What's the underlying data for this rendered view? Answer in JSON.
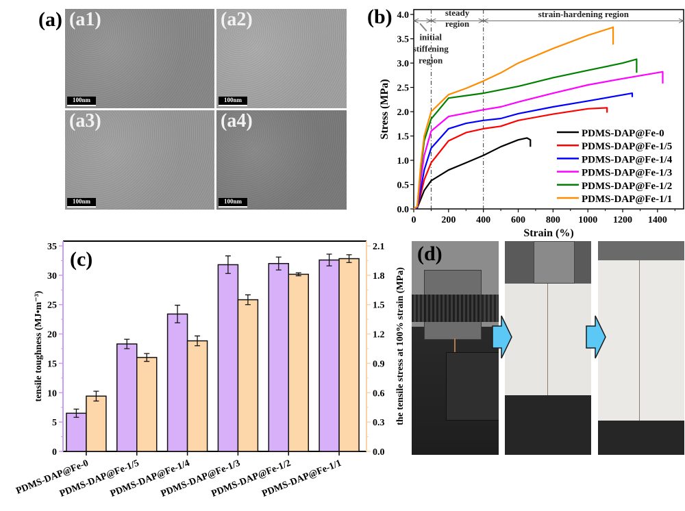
{
  "figure": {
    "panel_labels": {
      "a": "(a)",
      "b": "(b)",
      "c": "(c)",
      "d": "(d)"
    },
    "tem_images": [
      {
        "label": "(a1)",
        "scale_bar": "100nm",
        "tone": "#8a8a8a"
      },
      {
        "label": "(a2)",
        "scale_bar": "100nm",
        "tone": "#a2a2a2"
      },
      {
        "label": "(a3)",
        "scale_bar": "100nm",
        "tone": "#989898"
      },
      {
        "label": "(a4)",
        "scale_bar": "100nm",
        "tone": "#7c7c7c"
      }
    ],
    "photos": {
      "description": [
        "clamped sample before stretching",
        "sample stretched",
        "sample further stretched"
      ],
      "arrow_color": "#5bc8f5"
    }
  },
  "chart_data": [
    {
      "type": "line",
      "panel": "(b)",
      "xlabel": "Strain (%)",
      "ylabel": "Stress (MPa)",
      "xlim": [
        0,
        1550
      ],
      "ylim": [
        0,
        4.1
      ],
      "xticks": [
        0,
        200,
        400,
        600,
        800,
        1000,
        1200,
        1400
      ],
      "yticks": [
        0.0,
        0.5,
        1.0,
        1.5,
        2.0,
        2.5,
        3.0,
        3.5,
        4.0
      ],
      "ytick_labels": [
        "0.0",
        "0.5",
        "1.0",
        "1.5",
        "2.0",
        "2.5",
        "3.0",
        "3.5",
        "4.0"
      ],
      "legend_position": "bottom-right",
      "annotations": {
        "vlines": [
          100,
          400
        ],
        "regions": [
          {
            "text": [
              "initial",
              "stiffening",
              "region"
            ]
          },
          {
            "text": [
              "steady",
              "region"
            ]
          },
          {
            "text": [
              "strain-hardening region"
            ]
          }
        ]
      },
      "series": [
        {
          "name": "PDMS-DAP@Fe-0",
          "color": "#000000",
          "x": [
            0,
            20,
            40,
            60,
            100,
            200,
            300,
            400,
            500,
            600,
            650,
            670,
            670
          ],
          "y": [
            0,
            0.02,
            0.2,
            0.38,
            0.58,
            0.8,
            0.95,
            1.1,
            1.28,
            1.42,
            1.46,
            1.42,
            1.28
          ]
        },
        {
          "name": "PDMS-DAP@Fe-1/5",
          "color": "#ff0000",
          "x": [
            0,
            20,
            40,
            60,
            100,
            200,
            300,
            400,
            500,
            600,
            800,
            1000,
            1110,
            1110
          ],
          "y": [
            0,
            0.02,
            0.3,
            0.6,
            0.95,
            1.4,
            1.57,
            1.65,
            1.7,
            1.82,
            1.95,
            2.06,
            2.08,
            1.98
          ]
        },
        {
          "name": "PDMS-DAP@Fe-1/4",
          "color": "#0000ff",
          "x": [
            0,
            20,
            40,
            60,
            100,
            200,
            300,
            400,
            500,
            600,
            800,
            1000,
            1255,
            1255
          ],
          "y": [
            0,
            0.02,
            0.4,
            0.8,
            1.25,
            1.65,
            1.76,
            1.82,
            1.86,
            1.96,
            2.1,
            2.22,
            2.38,
            2.3
          ]
        },
        {
          "name": "PDMS-DAP@Fe-1/3",
          "color": "#ff00ff",
          "x": [
            0,
            20,
            40,
            60,
            100,
            200,
            300,
            400,
            500,
            600,
            800,
            1000,
            1200,
            1430,
            1430
          ],
          "y": [
            0,
            0.05,
            0.6,
            1.1,
            1.6,
            1.9,
            1.97,
            2.04,
            2.1,
            2.2,
            2.38,
            2.55,
            2.68,
            2.82,
            2.58
          ]
        },
        {
          "name": "PDMS-DAP@Fe-1/2",
          "color": "#008000",
          "x": [
            0,
            20,
            40,
            60,
            100,
            200,
            300,
            400,
            500,
            600,
            800,
            1000,
            1200,
            1280,
            1280
          ],
          "y": [
            0,
            0.05,
            0.8,
            1.4,
            1.85,
            2.28,
            2.33,
            2.38,
            2.45,
            2.52,
            2.7,
            2.85,
            3.0,
            3.08,
            2.8
          ]
        },
        {
          "name": "PDMS-DAP@Fe-1/1",
          "color": "#ff8c00",
          "x": [
            0,
            20,
            40,
            60,
            100,
            200,
            300,
            400,
            500,
            600,
            800,
            1000,
            1140,
            1145,
            1145
          ],
          "y": [
            0,
            0.05,
            0.9,
            1.5,
            2.0,
            2.35,
            2.48,
            2.63,
            2.8,
            3.0,
            3.3,
            3.57,
            3.73,
            3.74,
            3.38
          ]
        }
      ]
    },
    {
      "type": "bar",
      "panel": "(c)",
      "categories": [
        "PDMS-DAP@Fe-0",
        "PDMS-DAP@Fe-1/5",
        "PDMS-DAP@Fe-1/4",
        "PDMS-DAP@Fe-1/3",
        "PDMS-DAP@Fe-1/2",
        "PDMS-DAP@Fe-1/1"
      ],
      "ylabel_left": "tensile toughness (MJ•m⁻³)",
      "ylabel_right": "the tensile stress at 100% strain (MPa)",
      "ylim_left": [
        0,
        35
      ],
      "ylim_right": [
        0,
        2.1
      ],
      "yticks_left": [
        "0",
        "5",
        "10",
        "15",
        "20",
        "25",
        "30",
        "35"
      ],
      "yticks_right": [
        "0.0",
        "0.3",
        "0.6",
        "0.9",
        "1.2",
        "1.5",
        "1.8",
        "2.1"
      ],
      "series": [
        {
          "name": "tensile toughness",
          "axis": "left",
          "color": "#d8b0fa",
          "values": [
            6.5,
            18.3,
            23.4,
            31.8,
            32.0,
            32.6
          ],
          "errors": [
            0.7,
            0.8,
            1.5,
            1.5,
            1.1,
            1.0
          ]
        },
        {
          "name": "tensile stress at 100% strain",
          "axis": "right",
          "color": "#fdd7aa",
          "values": [
            0.565,
            0.96,
            1.13,
            1.55,
            1.81,
            1.97
          ],
          "errors": [
            0.05,
            0.04,
            0.05,
            0.05,
            0.015,
            0.04
          ]
        }
      ],
      "left_axis_color": "#c89cf5",
      "right_axis_color": "#fbd4a6"
    }
  ]
}
